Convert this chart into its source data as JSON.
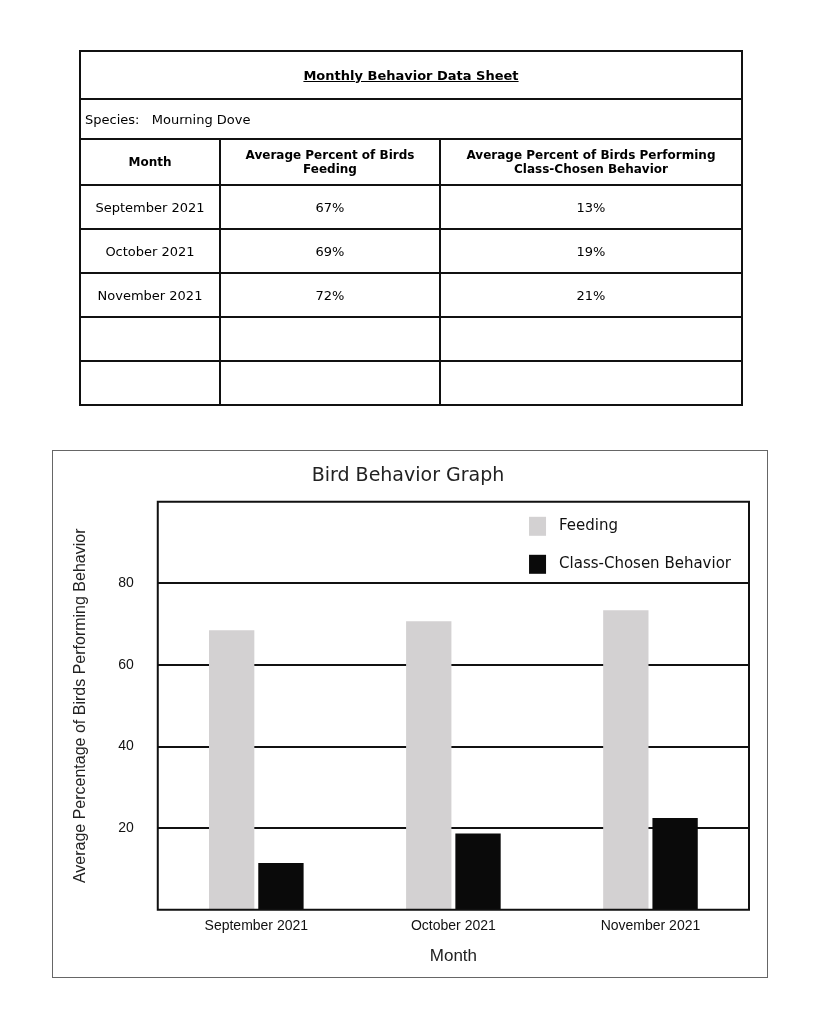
{
  "chart_data": {
    "type": "bar",
    "title": "Bird Behavior Graph",
    "xlabel": "Month",
    "ylabel": "Average Percentage of Birds Performing Behavior",
    "categories": [
      "September 2021",
      "October 2021",
      "November 2021"
    ],
    "series": [
      {
        "name": "Feeding",
        "color": "#d3d1d2",
        "values": [
          68.5,
          70.7,
          73.4
        ]
      },
      {
        "name": "Class-Chosen Behavior",
        "color": "#0a0a0a",
        "values": [
          11.5,
          18.7,
          22.5
        ]
      }
    ],
    "ylim": [
      0,
      100
    ],
    "yticks": [
      20,
      40,
      60,
      80
    ],
    "grid": "y",
    "legend": "top right",
    "annotations": [
      "Monthly Behavior Data Sheet",
      "Species:",
      "Mourning Dove",
      "Month",
      "Average Percent of Birds Feeding",
      "Average Percent of Birds Performing Class-Chosen Behavior",
      "September 2021",
      "67%",
      "13%",
      "October 2021",
      "69%",
      "19%",
      "November 2021",
      "72%",
      "21%"
    ]
  }
}
